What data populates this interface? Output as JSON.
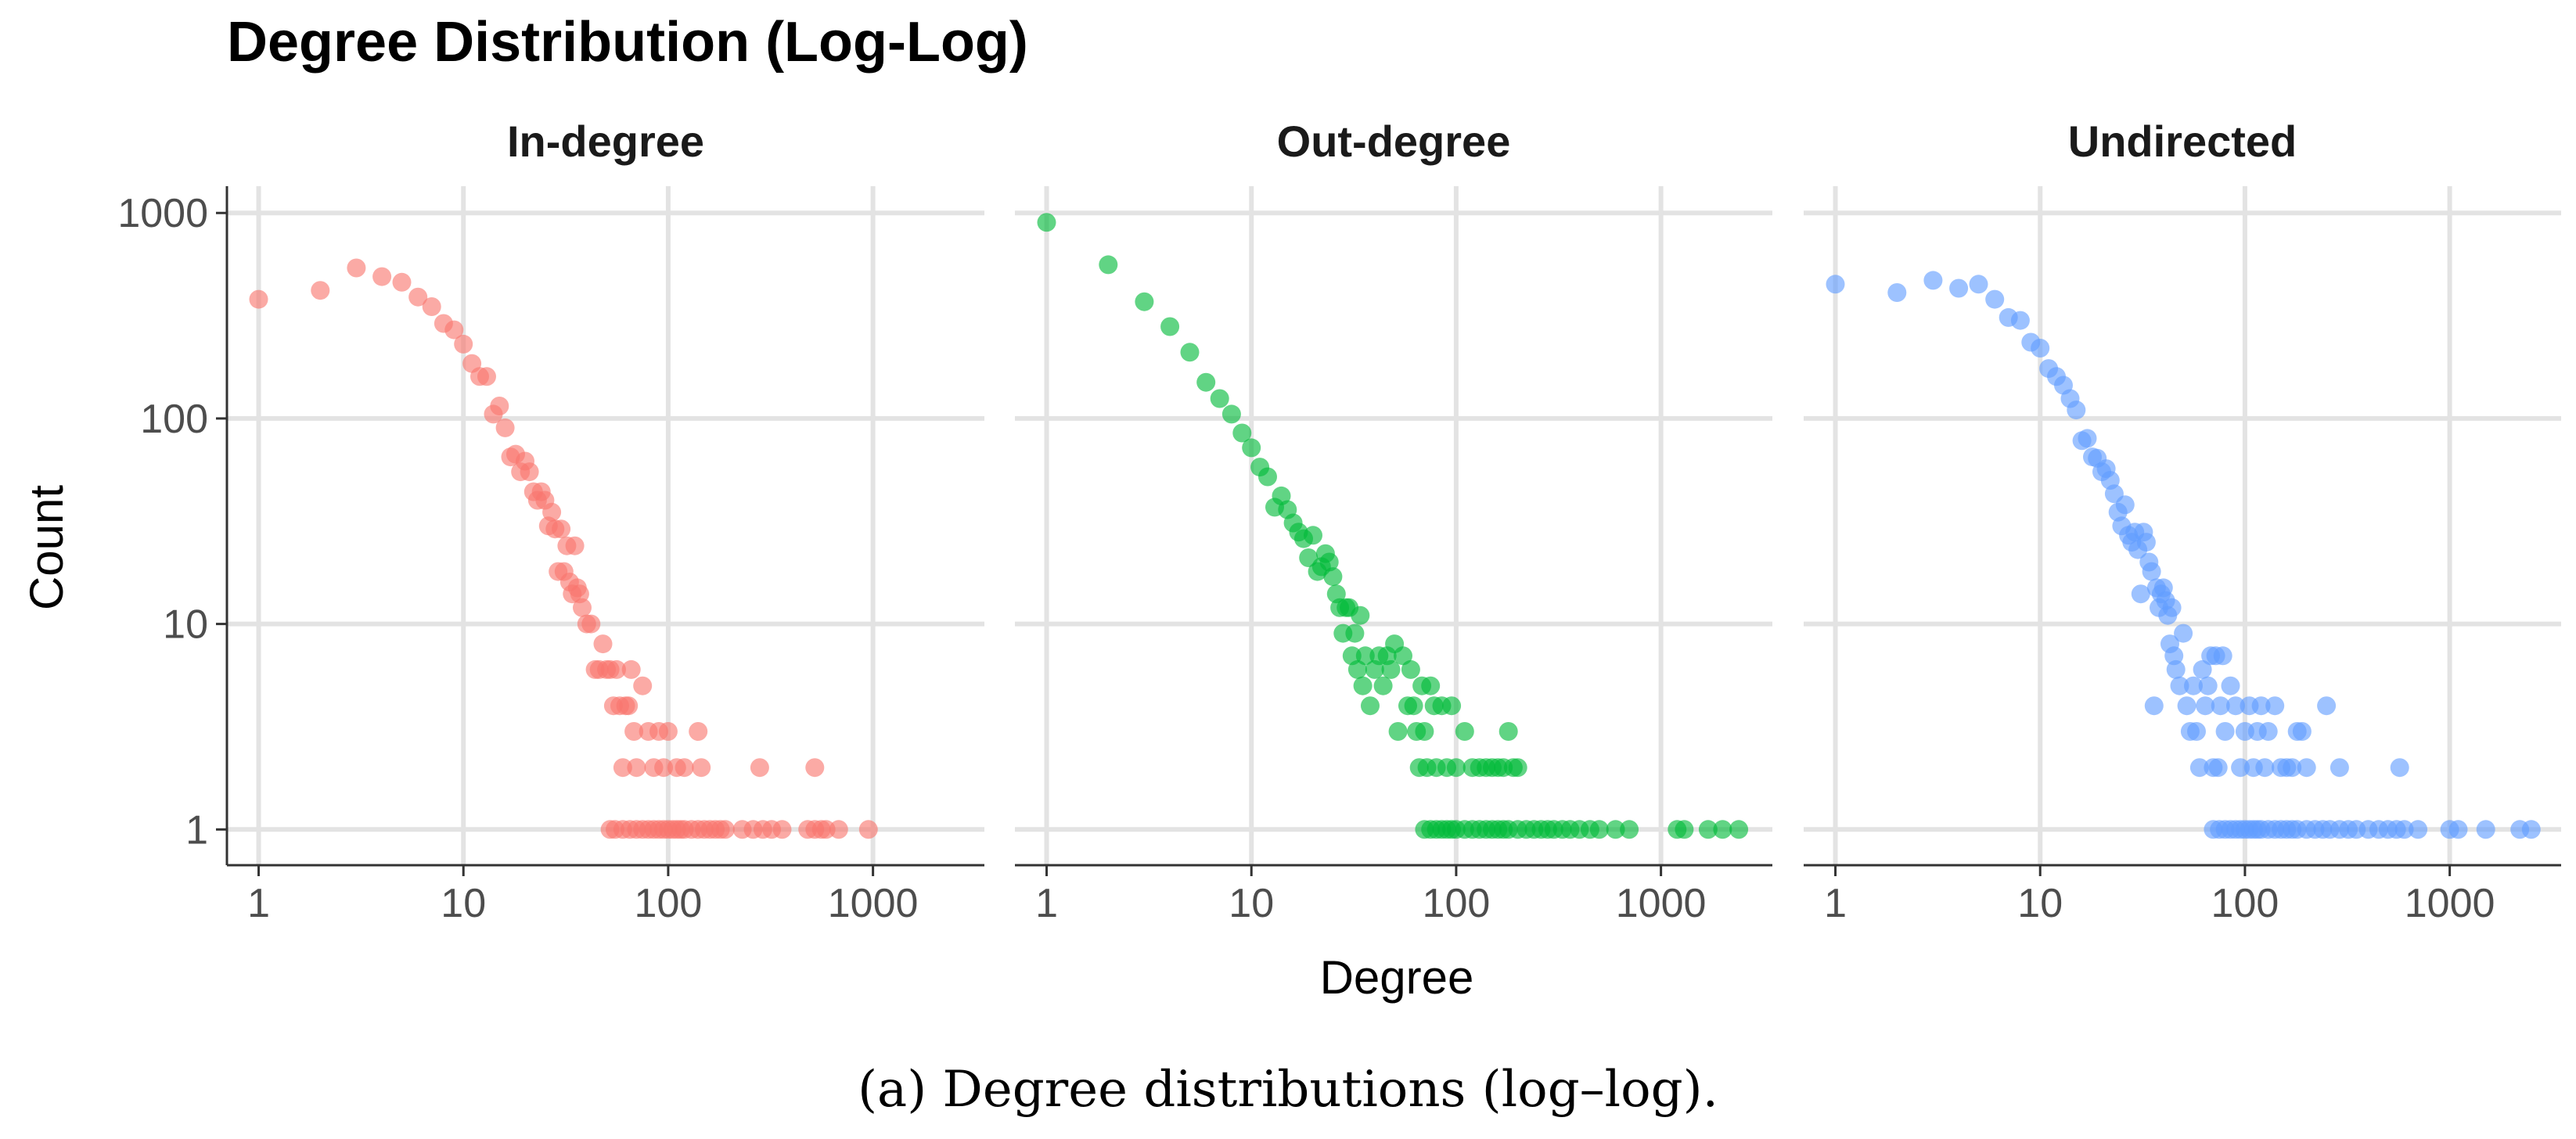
{
  "chart_data": {
    "type": "scatter",
    "title": "Degree Distribution (Log-Log)",
    "xlabel": "Degree",
    "ylabel": "Count",
    "xscale": "log",
    "yscale": "log",
    "xlim": [
      0.7,
      3500
    ],
    "ylim": [
      0.67,
      1350
    ],
    "x_ticks": [
      1,
      10,
      100,
      1000
    ],
    "x_tick_labels": [
      "1",
      "10",
      "100",
      "1000"
    ],
    "y_ticks": [
      1,
      10,
      100,
      1000
    ],
    "y_tick_labels": [
      "1",
      "10",
      "100",
      "1000"
    ],
    "grid": true,
    "panels": [
      {
        "name": "In-degree",
        "color": "#F8766D",
        "points": [
          [
            1,
            380
          ],
          [
            2,
            420
          ],
          [
            3,
            540
          ],
          [
            4,
            490
          ],
          [
            5,
            460
          ],
          [
            6,
            390
          ],
          [
            7,
            350
          ],
          [
            8,
            290
          ],
          [
            9,
            270
          ],
          [
            10,
            230
          ],
          [
            11,
            185
          ],
          [
            12,
            160
          ],
          [
            13,
            160
          ],
          [
            14,
            105
          ],
          [
            15,
            115
          ],
          [
            16,
            90
          ],
          [
            17,
            65
          ],
          [
            18,
            67
          ],
          [
            19,
            55
          ],
          [
            20,
            62
          ],
          [
            21,
            55
          ],
          [
            22,
            44
          ],
          [
            23,
            40
          ],
          [
            24,
            44
          ],
          [
            25,
            40
          ],
          [
            26,
            30
          ],
          [
            27,
            35
          ],
          [
            28,
            29
          ],
          [
            29,
            18
          ],
          [
            30,
            29
          ],
          [
            31,
            18
          ],
          [
            32,
            24
          ],
          [
            33,
            16
          ],
          [
            34,
            14
          ],
          [
            35,
            24
          ],
          [
            36,
            15
          ],
          [
            37,
            14
          ],
          [
            38,
            12
          ],
          [
            40,
            10
          ],
          [
            42,
            10
          ],
          [
            44,
            6
          ],
          [
            46,
            6
          ],
          [
            48,
            8
          ],
          [
            50,
            6
          ],
          [
            52,
            6
          ],
          [
            54,
            4
          ],
          [
            56,
            6
          ],
          [
            58,
            4
          ],
          [
            60,
            2
          ],
          [
            62,
            4
          ],
          [
            64,
            4
          ],
          [
            66,
            6
          ],
          [
            68,
            3
          ],
          [
            70,
            2
          ],
          [
            75,
            5
          ],
          [
            80,
            3
          ],
          [
            85,
            2
          ],
          [
            90,
            3
          ],
          [
            95,
            2
          ],
          [
            100,
            3
          ],
          [
            110,
            2
          ],
          [
            120,
            2
          ],
          [
            140,
            3
          ],
          [
            145,
            2
          ],
          [
            280,
            2
          ],
          [
            520,
            2
          ],
          [
            52,
            1
          ],
          [
            55,
            1
          ],
          [
            60,
            1
          ],
          [
            65,
            1
          ],
          [
            70,
            1
          ],
          [
            75,
            1
          ],
          [
            80,
            1
          ],
          [
            85,
            1
          ],
          [
            90,
            1
          ],
          [
            95,
            1
          ],
          [
            100,
            1
          ],
          [
            105,
            1
          ],
          [
            110,
            1
          ],
          [
            115,
            1
          ],
          [
            120,
            1
          ],
          [
            130,
            1
          ],
          [
            140,
            1
          ],
          [
            150,
            1
          ],
          [
            160,
            1
          ],
          [
            170,
            1
          ],
          [
            180,
            1
          ],
          [
            190,
            1
          ],
          [
            230,
            1
          ],
          [
            260,
            1
          ],
          [
            290,
            1
          ],
          [
            320,
            1
          ],
          [
            360,
            1
          ],
          [
            480,
            1
          ],
          [
            520,
            1
          ],
          [
            560,
            1
          ],
          [
            590,
            1
          ],
          [
            680,
            1
          ],
          [
            950,
            1
          ]
        ]
      },
      {
        "name": "Out-degree",
        "color": "#00BA38",
        "points": [
          [
            1,
            900
          ],
          [
            2,
            560
          ],
          [
            3,
            370
          ],
          [
            4,
            280
          ],
          [
            5,
            210
          ],
          [
            6,
            150
          ],
          [
            7,
            125
          ],
          [
            8,
            105
          ],
          [
            9,
            85
          ],
          [
            10,
            72
          ],
          [
            11,
            58
          ],
          [
            12,
            52
          ],
          [
            13,
            37
          ],
          [
            14,
            42
          ],
          [
            15,
            36
          ],
          [
            16,
            31
          ],
          [
            17,
            28
          ],
          [
            18,
            26
          ],
          [
            19,
            21
          ],
          [
            20,
            27
          ],
          [
            21,
            18
          ],
          [
            22,
            19
          ],
          [
            23,
            22
          ],
          [
            24,
            20
          ],
          [
            25,
            17
          ],
          [
            26,
            14
          ],
          [
            27,
            12
          ],
          [
            28,
            9
          ],
          [
            29,
            12
          ],
          [
            30,
            12
          ],
          [
            31,
            7
          ],
          [
            32,
            9
          ],
          [
            33,
            6
          ],
          [
            34,
            11
          ],
          [
            35,
            5
          ],
          [
            36,
            7
          ],
          [
            38,
            4
          ],
          [
            40,
            6
          ],
          [
            42,
            7
          ],
          [
            44,
            5
          ],
          [
            46,
            7
          ],
          [
            48,
            6
          ],
          [
            50,
            8
          ],
          [
            52,
            3
          ],
          [
            55,
            7
          ],
          [
            58,
            4
          ],
          [
            60,
            6
          ],
          [
            62,
            4
          ],
          [
            64,
            3
          ],
          [
            66,
            2
          ],
          [
            68,
            5
          ],
          [
            70,
            3
          ],
          [
            72,
            2
          ],
          [
            75,
            5
          ],
          [
            78,
            4
          ],
          [
            80,
            2
          ],
          [
            85,
            4
          ],
          [
            90,
            2
          ],
          [
            95,
            4
          ],
          [
            100,
            2
          ],
          [
            110,
            3
          ],
          [
            120,
            2
          ],
          [
            130,
            2
          ],
          [
            140,
            2
          ],
          [
            150,
            2
          ],
          [
            160,
            2
          ],
          [
            170,
            2
          ],
          [
            180,
            3
          ],
          [
            190,
            2
          ],
          [
            200,
            2
          ],
          [
            70,
            1
          ],
          [
            75,
            1
          ],
          [
            80,
            1
          ],
          [
            85,
            1
          ],
          [
            90,
            1
          ],
          [
            95,
            1
          ],
          [
            100,
            1
          ],
          [
            110,
            1
          ],
          [
            120,
            1
          ],
          [
            130,
            1
          ],
          [
            140,
            1
          ],
          [
            150,
            1
          ],
          [
            160,
            1
          ],
          [
            170,
            1
          ],
          [
            180,
            1
          ],
          [
            200,
            1
          ],
          [
            220,
            1
          ],
          [
            240,
            1
          ],
          [
            260,
            1
          ],
          [
            280,
            1
          ],
          [
            300,
            1
          ],
          [
            330,
            1
          ],
          [
            360,
            1
          ],
          [
            400,
            1
          ],
          [
            450,
            1
          ],
          [
            500,
            1
          ],
          [
            600,
            1
          ],
          [
            700,
            1
          ],
          [
            1200,
            1
          ],
          [
            1300,
            1
          ],
          [
            1700,
            1
          ],
          [
            2000,
            1
          ],
          [
            2400,
            1
          ]
        ]
      },
      {
        "name": "Undirected",
        "color": "#619CFF",
        "points": [
          [
            1,
            450
          ],
          [
            2,
            410
          ],
          [
            3,
            470
          ],
          [
            4,
            430
          ],
          [
            5,
            450
          ],
          [
            6,
            380
          ],
          [
            7,
            310
          ],
          [
            8,
            300
          ],
          [
            9,
            235
          ],
          [
            10,
            220
          ],
          [
            11,
            175
          ],
          [
            12,
            160
          ],
          [
            13,
            145
          ],
          [
            14,
            125
          ],
          [
            15,
            110
          ],
          [
            16,
            78
          ],
          [
            17,
            80
          ],
          [
            18,
            65
          ],
          [
            19,
            64
          ],
          [
            20,
            55
          ],
          [
            21,
            57
          ],
          [
            22,
            50
          ],
          [
            23,
            43
          ],
          [
            24,
            35
          ],
          [
            25,
            30
          ],
          [
            26,
            38
          ],
          [
            27,
            27
          ],
          [
            28,
            25
          ],
          [
            29,
            28
          ],
          [
            30,
            23
          ],
          [
            31,
            14
          ],
          [
            32,
            28
          ],
          [
            33,
            25
          ],
          [
            34,
            20
          ],
          [
            35,
            18
          ],
          [
            36,
            4
          ],
          [
            37,
            15
          ],
          [
            38,
            12
          ],
          [
            39,
            14
          ],
          [
            40,
            15
          ],
          [
            41,
            13
          ],
          [
            42,
            11
          ],
          [
            43,
            8
          ],
          [
            44,
            12
          ],
          [
            45,
            7
          ],
          [
            46,
            6
          ],
          [
            48,
            5
          ],
          [
            50,
            9
          ],
          [
            52,
            4
          ],
          [
            54,
            3
          ],
          [
            56,
            5
          ],
          [
            58,
            3
          ],
          [
            60,
            2
          ],
          [
            62,
            6
          ],
          [
            64,
            4
          ],
          [
            66,
            5
          ],
          [
            68,
            7
          ],
          [
            70,
            2
          ],
          [
            72,
            7
          ],
          [
            74,
            2
          ],
          [
            76,
            4
          ],
          [
            78,
            7
          ],
          [
            80,
            3
          ],
          [
            85,
            5
          ],
          [
            90,
            4
          ],
          [
            95,
            2
          ],
          [
            100,
            3
          ],
          [
            105,
            4
          ],
          [
            110,
            2
          ],
          [
            115,
            3
          ],
          [
            120,
            4
          ],
          [
            125,
            2
          ],
          [
            130,
            3
          ],
          [
            140,
            4
          ],
          [
            150,
            2
          ],
          [
            160,
            2
          ],
          [
            170,
            2
          ],
          [
            180,
            3
          ],
          [
            190,
            3
          ],
          [
            200,
            2
          ],
          [
            250,
            4
          ],
          [
            290,
            2
          ],
          [
            570,
            2
          ],
          [
            70,
            1
          ],
          [
            75,
            1
          ],
          [
            80,
            1
          ],
          [
            85,
            1
          ],
          [
            90,
            1
          ],
          [
            95,
            1
          ],
          [
            100,
            1
          ],
          [
            105,
            1
          ],
          [
            110,
            1
          ],
          [
            115,
            1
          ],
          [
            120,
            1
          ],
          [
            130,
            1
          ],
          [
            140,
            1
          ],
          [
            150,
            1
          ],
          [
            160,
            1
          ],
          [
            170,
            1
          ],
          [
            180,
            1
          ],
          [
            200,
            1
          ],
          [
            220,
            1
          ],
          [
            240,
            1
          ],
          [
            260,
            1
          ],
          [
            290,
            1
          ],
          [
            320,
            1
          ],
          [
            350,
            1
          ],
          [
            400,
            1
          ],
          [
            450,
            1
          ],
          [
            500,
            1
          ],
          [
            550,
            1
          ],
          [
            600,
            1
          ],
          [
            700,
            1
          ],
          [
            1000,
            1
          ],
          [
            1100,
            1
          ],
          [
            1500,
            1
          ],
          [
            2200,
            1
          ],
          [
            2500,
            1
          ]
        ]
      }
    ]
  },
  "caption": "(a) Degree distributions (log–log)."
}
